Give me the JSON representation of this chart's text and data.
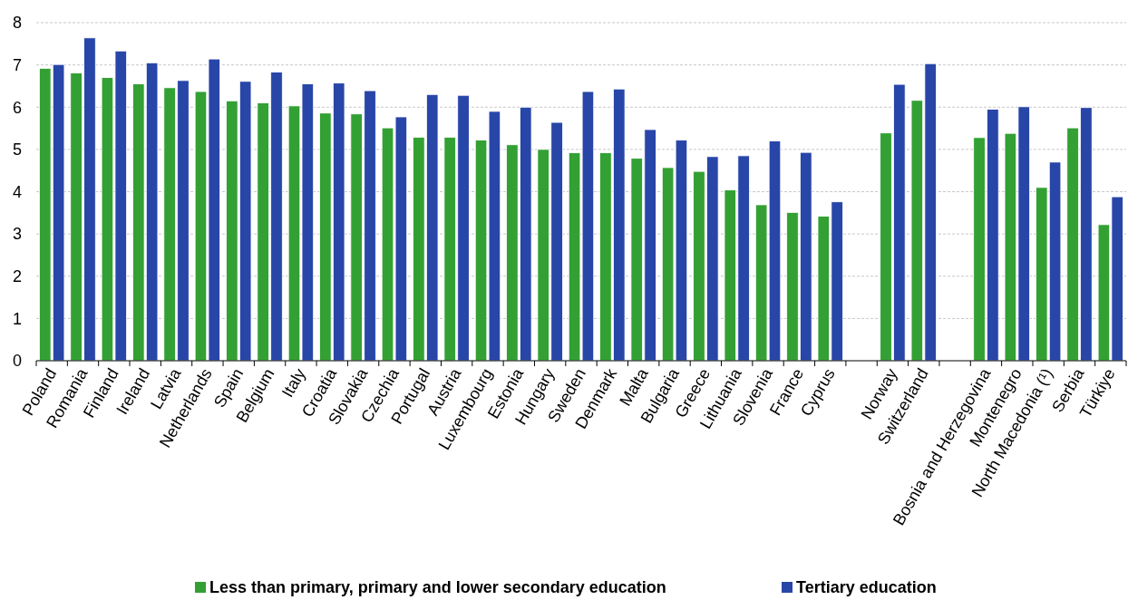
{
  "chart_data": {
    "type": "bar",
    "categories": [
      "Poland",
      "Romania",
      "Finland",
      "Ireland",
      "Latvia",
      "Netherlands",
      "Spain",
      "Belgium",
      "Italy",
      "Croatia",
      "Slovakia",
      "Czechia",
      "Portugal",
      "Austria",
      "Luxembourg",
      "Estonia",
      "Hungary",
      "Sweden",
      "Denmark",
      "Malta",
      "Bulgaria",
      "Greece",
      "Lithuania",
      "Slovenia",
      "France",
      "Cyprus",
      null,
      "Norway",
      "Switzerland",
      null,
      "Bosnia and Herzegovina",
      "Montenegro",
      "North Macedonia (¹)",
      "Serbia",
      "Türkiye"
    ],
    "series": [
      {
        "name": "Less than primary, primary and lower secondary education",
        "color": "#33a033",
        "values": [
          6.92,
          6.81,
          6.7,
          6.55,
          6.46,
          6.37,
          6.15,
          6.1,
          6.03,
          5.86,
          5.84,
          5.51,
          5.29,
          5.29,
          5.22,
          5.11,
          5.0,
          4.92,
          4.92,
          4.79,
          4.57,
          4.48,
          4.04,
          3.69,
          3.51,
          3.42,
          null,
          5.39,
          6.16,
          null,
          5.28,
          5.38,
          4.1,
          5.51,
          3.22
        ]
      },
      {
        "name": "Tertiary education",
        "color": "#2846a8",
        "values": [
          7.01,
          7.64,
          7.33,
          7.05,
          6.63,
          7.14,
          6.61,
          6.83,
          6.55,
          6.57,
          6.39,
          5.77,
          6.3,
          6.28,
          5.9,
          6.0,
          5.64,
          6.37,
          6.43,
          5.47,
          5.22,
          4.83,
          4.85,
          5.2,
          4.93,
          3.76,
          null,
          6.54,
          7.03,
          null,
          5.95,
          6.01,
          4.7,
          5.99,
          3.88
        ]
      }
    ],
    "ylim": [
      0,
      8
    ],
    "yticks": [
      0,
      1,
      2,
      3,
      4,
      5,
      6,
      7,
      8
    ],
    "grid": "y",
    "legend": "bottom"
  }
}
